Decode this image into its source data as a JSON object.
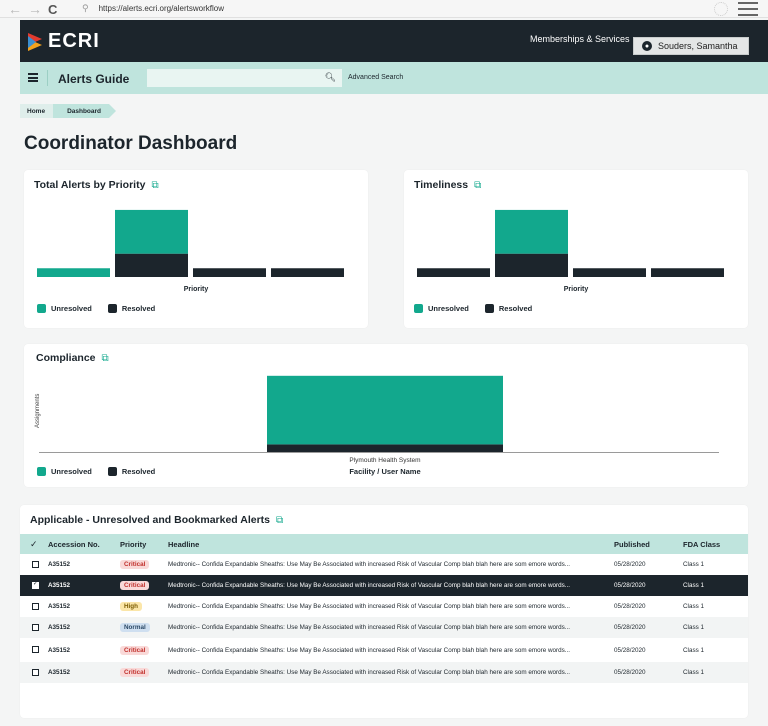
{
  "browser": {
    "url": "https://alerts.ecri.org/alertsworkflow",
    "back": "←",
    "forward": "→",
    "reload": "C"
  },
  "header": {
    "logo": "ECRI",
    "memberships_label": "Memberships & Services",
    "user_name": "Souders, Samantha"
  },
  "subnav": {
    "title": "Alerts Guide",
    "search_placeholder": "",
    "advanced_search": "Advanced Search"
  },
  "breadcrumb": [
    "Home",
    "Dashboard"
  ],
  "page_title": "Coordinator Dashboard",
  "colors": {
    "unresolved": "#12a88d",
    "resolved": "#1c252c",
    "dark": "#1c252c",
    "mint": "#bfe4dd"
  },
  "legend": {
    "unresolved": "Unresolved",
    "resolved": "Resolved"
  },
  "chart_data": [
    {
      "type": "bar",
      "title": "Total Alerts by Priority",
      "xlabel": "Priority",
      "categories": [
        "",
        "",
        "",
        ""
      ],
      "series": [
        {
          "name": "Resolved",
          "values": [
            0,
            4,
            1.5,
            1.5
          ]
        },
        {
          "name": "Unresolved",
          "values": [
            1.5,
            7.5,
            0,
            0
          ]
        }
      ],
      "stacked": true,
      "ylim": [
        0,
        12
      ]
    },
    {
      "type": "bar",
      "title": "Timeliness",
      "xlabel": "Priority",
      "categories": [
        "",
        "",
        "",
        ""
      ],
      "series": [
        {
          "name": "Resolved",
          "values": [
            1.5,
            4,
            1.5,
            1.5
          ]
        },
        {
          "name": "Unresolved",
          "values": [
            0,
            7.5,
            0,
            0
          ]
        }
      ],
      "stacked": true,
      "ylim": [
        0,
        12
      ]
    },
    {
      "type": "bar",
      "title": "Compliance",
      "xlabel": "Facility / User Name",
      "ylabel": "Assignments",
      "categories": [
        "Plymouth Health System"
      ],
      "series": [
        {
          "name": "Resolved",
          "values": [
            1
          ]
        },
        {
          "name": "Unresolved",
          "values": [
            9
          ]
        }
      ],
      "stacked": true,
      "ylim": [
        0,
        10.5
      ]
    }
  ],
  "table": {
    "title": "Applicable - Unresolved and Bookmarked Alerts",
    "check_header": "✓",
    "columns": [
      "Accession No.",
      "Priority",
      "Headline",
      "Published",
      "FDA Class"
    ],
    "rows": [
      {
        "checked": false,
        "accession": "A35152",
        "priority": "Critical",
        "headline": "Medtronic-- Confida Expandable Sheaths: Use May Be Associated with increased Risk of Vascular Comp blah blah here are som emore words...",
        "published": "05/28/2020",
        "fda_class": "Class 1"
      },
      {
        "checked": true,
        "accession": "A35152",
        "priority": "Critical",
        "headline": "Medtronic-- Confida Expandable Sheaths: Use May Be Associated with increased Risk of Vascular Comp blah blah here are som emore words...",
        "published": "05/28/2020",
        "fda_class": "Class 1"
      },
      {
        "checked": false,
        "accession": "A35152",
        "priority": "High",
        "headline": "Medtronic-- Confida Expandable Sheaths: Use May Be Associated with increased Risk of Vascular Comp blah blah here are som emore words...",
        "published": "05/28/2020",
        "fda_class": "Class 1"
      },
      {
        "checked": false,
        "accession": "A35152",
        "priority": "Normal",
        "headline": "Medtronic-- Confida Expandable Sheaths: Use May Be Associated with increased Risk of Vascular Comp blah blah here are som emore words...",
        "published": "05/28/2020",
        "fda_class": "Class 1"
      },
      {
        "checked": false,
        "accession": "A35152",
        "priority": "Critical",
        "headline": "Medtronic-- Confida Expandable Sheaths: Use May Be Associated with increased Risk of Vascular Comp blah blah here are som emore words...",
        "published": "05/28/2020",
        "fda_class": "Class 1"
      },
      {
        "checked": false,
        "accession": "A35152",
        "priority": "Critical",
        "headline": "Medtronic-- Confida Expandable Sheaths: Use May Be Associated with increased Risk of Vascular Comp blah blah here are som emore words...",
        "published": "05/28/2020",
        "fda_class": "Class 1"
      }
    ]
  }
}
